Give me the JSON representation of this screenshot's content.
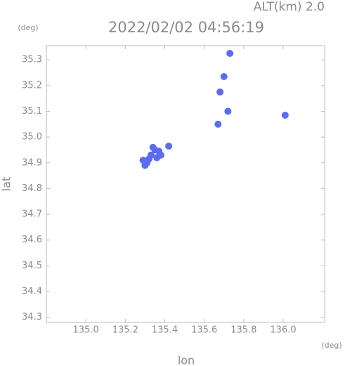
{
  "chart_data": {
    "type": "scatter",
    "title": "2022/02/02 04:56:19",
    "subtitle": "ALT(km) 2.0",
    "x_label": "lon",
    "y_label": "lat",
    "x_unit": "(deg)",
    "y_unit": "(deg)",
    "xlim": [
      134.8,
      136.21
    ],
    "ylim": [
      34.28,
      35.355
    ],
    "xticks": [
      {
        "value": 135.0,
        "label": "135.0"
      },
      135.2,
      135.4,
      135.6,
      135.8,
      {
        "value": 136.0,
        "label": "136.0"
      }
    ],
    "yticks": [
      34.3,
      34.4,
      34.5,
      34.6,
      34.7,
      34.8,
      34.9,
      {
        "value": 35.0,
        "label": "35.0"
      },
      35.1,
      35.2,
      35.3
    ],
    "series": [
      {
        "color": "#5a6cf0",
        "x": [
          135.73,
          135.7,
          135.68,
          135.72,
          135.67,
          136.01,
          135.33,
          135.35,
          135.31,
          135.36,
          135.3,
          135.37,
          135.34,
          135.32,
          135.38,
          135.29,
          135.42
        ],
        "y": [
          35.325,
          35.235,
          35.175,
          35.1,
          35.05,
          35.085,
          34.93,
          34.95,
          34.9,
          34.92,
          34.89,
          34.945,
          34.96,
          34.915,
          34.93,
          34.91,
          34.965
        ]
      }
    ]
  }
}
